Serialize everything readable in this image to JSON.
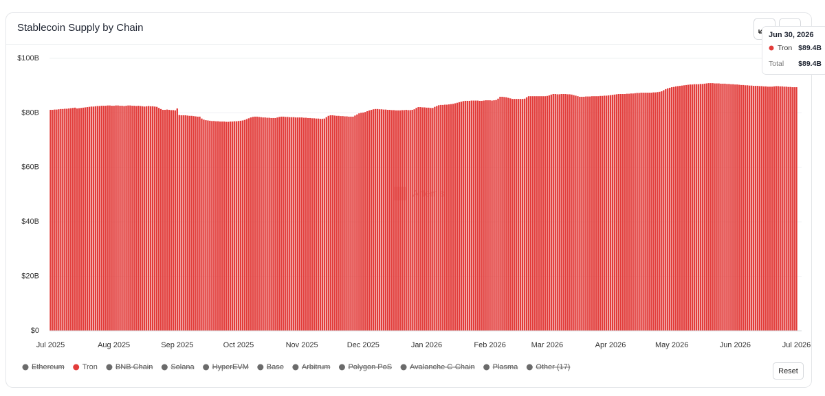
{
  "chart_data": {
    "type": "bar",
    "title": "Stablecoin Supply by Chain",
    "categories": [
      "Jul 2025",
      null,
      null,
      null,
      null,
      null,
      null,
      null,
      null,
      null,
      null,
      null,
      null,
      null,
      null,
      null,
      null,
      null,
      null,
      null,
      null,
      null,
      null,
      null,
      null,
      null,
      null,
      null,
      null,
      null,
      null,
      "Aug 2025",
      null,
      null,
      null,
      null,
      null,
      null,
      null,
      null,
      null,
      null,
      null,
      null,
      null,
      null,
      null,
      null,
      null,
      null,
      null,
      null,
      null,
      null,
      null,
      null,
      null,
      null,
      null,
      null,
      null,
      null,
      "Sep 2025",
      null,
      null,
      null,
      null,
      null,
      null,
      null,
      null,
      null,
      null,
      null,
      null,
      null,
      null,
      null,
      null,
      null,
      null,
      null,
      null,
      null,
      null,
      null,
      null,
      null,
      null,
      null,
      null,
      null,
      "Oct 2025",
      null,
      null,
      null,
      null,
      null,
      null,
      null,
      null,
      null,
      null,
      null,
      null,
      null,
      null,
      null,
      null,
      null,
      null,
      null,
      null,
      null,
      null,
      null,
      null,
      null,
      null,
      null,
      null,
      null,
      null,
      "Nov 2025",
      null,
      null,
      null,
      null,
      null,
      null,
      null,
      null,
      null,
      null,
      null,
      null,
      null,
      null,
      null,
      null,
      null,
      null,
      null,
      null,
      null,
      null,
      null,
      null,
      null,
      null,
      null,
      null,
      null,
      "Dec 2025",
      null,
      null,
      null,
      null,
      null,
      null,
      null,
      null,
      null,
      null,
      null,
      null,
      null,
      null,
      null,
      null,
      null,
      null,
      null,
      null,
      null,
      null,
      null,
      null,
      null,
      null,
      null,
      null,
      null,
      null,
      "Jan 2026",
      null,
      null,
      null,
      null,
      null,
      null,
      null,
      null,
      null,
      null,
      null,
      null,
      null,
      null,
      null,
      null,
      null,
      null,
      null,
      null,
      null,
      null,
      null,
      null,
      null,
      null,
      null,
      null,
      null,
      null,
      "Feb 2026",
      null,
      null,
      null,
      null,
      null,
      null,
      null,
      null,
      null,
      null,
      null,
      null,
      null,
      null,
      null,
      null,
      null,
      null,
      null,
      null,
      null,
      null,
      null,
      null,
      null,
      null,
      null,
      "Mar 2026",
      null,
      null,
      null,
      null,
      null,
      null,
      null,
      null,
      null,
      null,
      null,
      null,
      null,
      null,
      null,
      null,
      null,
      null,
      null,
      null,
      null,
      null,
      null,
      null,
      null,
      null,
      null,
      null,
      null,
      null,
      "Apr 2026",
      null,
      null,
      null,
      null,
      null,
      null,
      null,
      null,
      null,
      null,
      null,
      null,
      null,
      null,
      null,
      null,
      null,
      null,
      null,
      null,
      null,
      null,
      null,
      null,
      null,
      null,
      null,
      null,
      null,
      "May 2026",
      null,
      null,
      null,
      null,
      null,
      null,
      null,
      null,
      null,
      null,
      null,
      null,
      null,
      null,
      null,
      null,
      null,
      null,
      null,
      null,
      null,
      null,
      null,
      null,
      null,
      null,
      null,
      null,
      null,
      null,
      "Jun 2026",
      null,
      null,
      null,
      null,
      null,
      null,
      null,
      null,
      null,
      null,
      null,
      null,
      null,
      null,
      null,
      null,
      null,
      null,
      null,
      null,
      null,
      null,
      null,
      null,
      null,
      null,
      null,
      null,
      null,
      "Jul 2026"
    ],
    "series": [
      {
        "name": "Ethereum",
        "color": "#6b6b6b",
        "hidden": true
      },
      {
        "name": "Tron",
        "color": "#e23c3a",
        "values": [
          81.1,
          81.1,
          81.2,
          81.2,
          81.3,
          81.4,
          81.4,
          81.5,
          81.5,
          81.6,
          81.7,
          81.8,
          81.9,
          81.6,
          81.7,
          81.8,
          81.9,
          82.0,
          82.1,
          82.2,
          82.3,
          82.3,
          82.4,
          82.5,
          82.5,
          82.6,
          82.6,
          82.6,
          82.7,
          82.7,
          82.6,
          82.6,
          82.7,
          82.7,
          82.6,
          82.6,
          82.5,
          82.6,
          82.7,
          82.7,
          82.6,
          82.6,
          82.5,
          82.6,
          82.5,
          82.4,
          82.3,
          82.4,
          82.5,
          82.4,
          82.4,
          82.3,
          82.2,
          81.8,
          81.4,
          81.1,
          81.1,
          81.2,
          81.1,
          81.0,
          81.0,
          80.9,
          81.6,
          79.2,
          79.1,
          79.1,
          79.1,
          79.0,
          78.9,
          78.9,
          78.8,
          78.7,
          78.6,
          78.6,
          77.9,
          77.5,
          77.3,
          77.2,
          77.1,
          77.0,
          77.0,
          76.9,
          76.9,
          76.8,
          76.8,
          76.8,
          76.7,
          76.7,
          76.8,
          76.8,
          76.9,
          76.9,
          77.0,
          77.1,
          77.2,
          77.4,
          77.7,
          78.0,
          78.3,
          78.5,
          78.6,
          78.6,
          78.5,
          78.4,
          78.3,
          78.3,
          78.2,
          78.2,
          78.1,
          78.1,
          78.1,
          78.3,
          78.5,
          78.6,
          78.6,
          78.5,
          78.5,
          78.4,
          78.4,
          78.4,
          78.3,
          78.3,
          78.3,
          78.3,
          78.2,
          78.2,
          78.1,
          78.1,
          78.0,
          78.0,
          77.9,
          77.9,
          77.8,
          77.8,
          77.9,
          78.4,
          78.9,
          79.1,
          79.1,
          79.0,
          78.9,
          78.9,
          78.8,
          78.8,
          78.7,
          78.7,
          78.6,
          78.6,
          78.6,
          79.0,
          79.4,
          79.8,
          80.0,
          80.1,
          80.3,
          80.6,
          80.9,
          81.1,
          81.3,
          81.4,
          81.4,
          81.3,
          81.3,
          81.2,
          81.2,
          81.1,
          81.1,
          81.0,
          81.0,
          80.9,
          80.9,
          80.9,
          81.0,
          81.0,
          81.1,
          81.0,
          81.0,
          81.1,
          81.3,
          81.8,
          82.1,
          82.1,
          82.0,
          82.0,
          81.9,
          81.9,
          81.8,
          81.8,
          82.2,
          82.5,
          82.8,
          82.9,
          82.9,
          83.0,
          83.0,
          83.1,
          83.2,
          83.3,
          83.5,
          83.7,
          83.9,
          84.1,
          84.3,
          84.4,
          84.4,
          84.4,
          84.5,
          84.5,
          84.5,
          84.5,
          84.4,
          84.4,
          84.5,
          84.6,
          84.6,
          84.6,
          84.5,
          84.6,
          84.7,
          85.2,
          85.9,
          85.9,
          85.8,
          85.7,
          85.5,
          85.3,
          85.1,
          85.1,
          85.1,
          85.1,
          85.1,
          85.1,
          85.2,
          85.7,
          86.1,
          86.1,
          86.1,
          86.1,
          86.1,
          86.1,
          86.1,
          86.1,
          86.1,
          86.2,
          86.4,
          86.7,
          86.9,
          86.9,
          86.8,
          86.8,
          86.9,
          86.9,
          86.9,
          86.8,
          86.8,
          86.7,
          86.5,
          86.3,
          86.1,
          85.9,
          85.9,
          85.9,
          86.0,
          86.0,
          86.0,
          86.1,
          86.1,
          86.1,
          86.1,
          86.2,
          86.2,
          86.3,
          86.3,
          86.4,
          86.5,
          86.6,
          86.7,
          86.8,
          86.9,
          86.9,
          86.9,
          86.9,
          87.0,
          87.0,
          87.1,
          87.1,
          87.2,
          87.3,
          87.3,
          87.4,
          87.4,
          87.4,
          87.4,
          87.4,
          87.4,
          87.5,
          87.5,
          87.6,
          87.7,
          87.9,
          88.3,
          88.7,
          89.0,
          89.2,
          89.4,
          89.5,
          89.7,
          89.8,
          89.9,
          90.0,
          90.1,
          90.2,
          90.3,
          90.4,
          90.4,
          90.5,
          90.5,
          90.5,
          90.6,
          90.6,
          90.7,
          90.8,
          90.9,
          90.9,
          90.9,
          90.8,
          90.8,
          90.8,
          90.7,
          90.7,
          90.7,
          90.6,
          90.6,
          90.5,
          90.5,
          90.4,
          90.4,
          90.3,
          90.2,
          90.2,
          90.1,
          90.1,
          90.0,
          90.0,
          89.9,
          89.9,
          89.9,
          89.8,
          89.8,
          89.7,
          89.7,
          89.6,
          89.6,
          89.6,
          89.7,
          89.8,
          89.8,
          89.7,
          89.7,
          89.6,
          89.6,
          89.5,
          89.5,
          89.4,
          89.4,
          89.4
        ]
      },
      {
        "name": "BNB Chain",
        "color": "#6b6b6b",
        "hidden": true
      },
      {
        "name": "Solana",
        "color": "#6b6b6b",
        "hidden": true
      },
      {
        "name": "HyperEVM",
        "color": "#6b6b6b",
        "hidden": true
      },
      {
        "name": "Base",
        "color": "#6b6b6b",
        "hidden": true
      },
      {
        "name": "Arbitrum",
        "color": "#6b6b6b",
        "hidden": true
      },
      {
        "name": "Polygon PoS",
        "color": "#6b6b6b",
        "hidden": true
      },
      {
        "name": "Avalanche C-Chain",
        "color": "#6b6b6b",
        "hidden": true
      },
      {
        "name": "Plasma",
        "color": "#6b6b6b",
        "hidden": true
      },
      {
        "name": "Other (17)",
        "color": "#6b6b6b",
        "hidden": true
      }
    ],
    "ylim": [
      0,
      100
    ],
    "yticks": [
      {
        "value": 0,
        "label": "$0"
      },
      {
        "value": 20,
        "label": "$20B"
      },
      {
        "value": 40,
        "label": "$40B"
      },
      {
        "value": 60,
        "label": "$60B"
      },
      {
        "value": 80,
        "label": "$80B"
      },
      {
        "value": 100,
        "label": "$100B"
      }
    ],
    "grid": true,
    "watermark": "Artemis",
    "tooltip": {
      "title": "Jun 30, 2026",
      "rows": [
        {
          "name": "Tron",
          "value": "$89.4B"
        },
        {
          "name": "Total",
          "value": "$89.4B"
        }
      ]
    },
    "reset_button": "Reset"
  }
}
